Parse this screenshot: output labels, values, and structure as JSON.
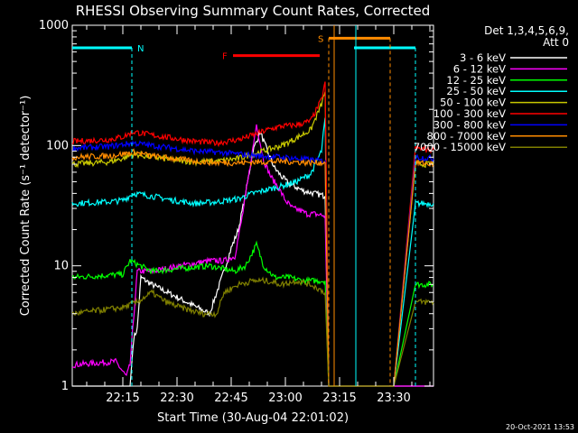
{
  "chart_data": {
    "type": "line",
    "title": "RHESSI Observing Summary Count Rates, Corrected",
    "xlabel": "Start Time (30-Aug-04 22:01:02)",
    "ylabel": "Corrected Count Rate (s⁻¹ detector⁻¹)",
    "y_scale": "log",
    "ylim": [
      1,
      1000
    ],
    "xlim_minutes": [
      0,
      100
    ],
    "y_ticks": [
      {
        "value": 1,
        "label": "1"
      },
      {
        "value": 10,
        "label": "10"
      },
      {
        "value": 100,
        "label": "100"
      },
      {
        "value": 1000,
        "label": "1000"
      }
    ],
    "x_ticks": [
      {
        "minute": 14,
        "label": "22:15"
      },
      {
        "minute": 29,
        "label": "22:30"
      },
      {
        "minute": 44,
        "label": "22:45"
      },
      {
        "minute": 59,
        "label": "23:00"
      },
      {
        "minute": 74,
        "label": "23:15"
      },
      {
        "minute": 89,
        "label": "23:30"
      }
    ],
    "legend_header": [
      "Det 1,3,4,5,6,9,",
      "Att 0"
    ],
    "legend_position": "right",
    "timestamp": "20-Oct-2021 13:53",
    "series": [
      {
        "name": "3 - 6 keV",
        "color": "#ffffff",
        "points": [
          [
            0,
            1
          ],
          [
            16,
            1
          ],
          [
            17,
            2.5
          ],
          [
            18,
            3
          ],
          [
            19,
            8
          ],
          [
            22,
            7
          ],
          [
            38,
            4
          ],
          [
            40,
            6
          ],
          [
            42,
            9
          ],
          [
            44,
            14
          ],
          [
            46,
            20
          ],
          [
            48,
            40
          ],
          [
            50,
            90
          ],
          [
            52,
            130
          ],
          [
            54,
            90
          ],
          [
            56,
            65
          ],
          [
            58,
            55
          ],
          [
            60,
            48
          ],
          [
            62,
            45
          ],
          [
            64,
            42
          ],
          [
            67,
            40
          ],
          [
            70,
            38
          ],
          [
            71,
            1
          ],
          [
            100,
            1
          ]
        ]
      },
      {
        "name": "6 - 12 keV",
        "color": "#ff00ff",
        "points": [
          [
            0,
            1.5
          ],
          [
            12,
            1.6
          ],
          [
            15,
            1.2
          ],
          [
            16,
            1.5
          ],
          [
            18,
            9
          ],
          [
            22,
            9
          ],
          [
            30,
            10
          ],
          [
            38,
            11
          ],
          [
            42,
            11
          ],
          [
            45,
            12
          ],
          [
            47,
            25
          ],
          [
            49,
            60
          ],
          [
            51,
            150
          ],
          [
            53,
            75
          ],
          [
            55,
            55
          ],
          [
            57,
            45
          ],
          [
            59,
            35
          ],
          [
            61,
            30
          ],
          [
            63,
            29
          ],
          [
            65,
            27
          ],
          [
            67,
            27
          ],
          [
            70,
            26
          ],
          [
            71,
            1
          ],
          [
            100,
            1
          ]
        ]
      },
      {
        "name": "12 - 25 keV",
        "color": "#00ff00",
        "points": [
          [
            0,
            8
          ],
          [
            14,
            8.5
          ],
          [
            16,
            11
          ],
          [
            22,
            9
          ],
          [
            30,
            9.5
          ],
          [
            38,
            10
          ],
          [
            45,
            9
          ],
          [
            48,
            10
          ],
          [
            51,
            15
          ],
          [
            53,
            10
          ],
          [
            56,
            8
          ],
          [
            60,
            8
          ],
          [
            64,
            7.5
          ],
          [
            67,
            7.5
          ],
          [
            70,
            7.5
          ],
          [
            71,
            1
          ],
          [
            89,
            1
          ],
          [
            95,
            7
          ],
          [
            100,
            7
          ]
        ]
      },
      {
        "name": "25 - 50 keV",
        "color": "#00ffff",
        "points": [
          [
            0,
            33
          ],
          [
            10,
            34
          ],
          [
            14,
            35
          ],
          [
            17,
            40
          ],
          [
            22,
            38
          ],
          [
            28,
            35
          ],
          [
            34,
            33
          ],
          [
            40,
            34
          ],
          [
            46,
            36
          ],
          [
            50,
            40
          ],
          [
            54,
            43
          ],
          [
            58,
            46
          ],
          [
            62,
            50
          ],
          [
            66,
            58
          ],
          [
            69,
            90
          ],
          [
            70,
            170
          ],
          [
            71,
            1
          ],
          [
            89,
            1
          ],
          [
            95,
            33
          ],
          [
            100,
            33
          ]
        ]
      },
      {
        "name": "50 - 100 keV",
        "color": "#c8c800",
        "points": [
          [
            0,
            70
          ],
          [
            10,
            73
          ],
          [
            14,
            78
          ],
          [
            17,
            85
          ],
          [
            22,
            80
          ],
          [
            28,
            76
          ],
          [
            34,
            73
          ],
          [
            40,
            74
          ],
          [
            46,
            78
          ],
          [
            50,
            85
          ],
          [
            54,
            92
          ],
          [
            58,
            100
          ],
          [
            62,
            115
          ],
          [
            66,
            135
          ],
          [
            69,
            220
          ],
          [
            70,
            280
          ],
          [
            71,
            1
          ],
          [
            89,
            1
          ],
          [
            95,
            70
          ],
          [
            100,
            70
          ]
        ]
      },
      {
        "name": "100 - 300 keV",
        "color": "#ff0000",
        "points": [
          [
            0,
            108
          ],
          [
            10,
            112
          ],
          [
            14,
            118
          ],
          [
            17,
            130
          ],
          [
            22,
            122
          ],
          [
            28,
            115
          ],
          [
            34,
            108
          ],
          [
            40,
            105
          ],
          [
            46,
            112
          ],
          [
            50,
            122
          ],
          [
            54,
            135
          ],
          [
            58,
            145
          ],
          [
            62,
            148
          ],
          [
            66,
            160
          ],
          [
            69,
            240
          ],
          [
            70,
            340
          ],
          [
            71,
            1
          ],
          [
            89,
            1
          ],
          [
            95,
            95
          ],
          [
            100,
            92
          ]
        ]
      },
      {
        "name": "300 - 800 keV",
        "color": "#0000ff",
        "points": [
          [
            0,
            95
          ],
          [
            10,
            98
          ],
          [
            14,
            102
          ],
          [
            17,
            105
          ],
          [
            22,
            100
          ],
          [
            28,
            95
          ],
          [
            34,
            90
          ],
          [
            40,
            88
          ],
          [
            46,
            85
          ],
          [
            52,
            82
          ],
          [
            58,
            80
          ],
          [
            62,
            78
          ],
          [
            66,
            76
          ],
          [
            70,
            74
          ],
          [
            71,
            1
          ],
          [
            89,
            1
          ],
          [
            95,
            80
          ],
          [
            100,
            78
          ]
        ]
      },
      {
        "name": "800 - 7000 keV",
        "color": "#ff8c00",
        "points": [
          [
            0,
            80
          ],
          [
            10,
            82
          ],
          [
            14,
            85
          ],
          [
            17,
            88
          ],
          [
            22,
            82
          ],
          [
            28,
            78
          ],
          [
            34,
            74
          ],
          [
            40,
            72
          ],
          [
            46,
            72
          ],
          [
            52,
            73
          ],
          [
            58,
            74
          ],
          [
            62,
            73
          ],
          [
            66,
            72
          ],
          [
            70,
            72
          ],
          [
            71,
            1
          ],
          [
            89,
            1
          ],
          [
            95,
            72
          ],
          [
            100,
            70
          ]
        ]
      },
      {
        "name": "7000 - 15000 keV",
        "color": "#808000",
        "points": [
          [
            0,
            4
          ],
          [
            14,
            4.5
          ],
          [
            18,
            5
          ],
          [
            22,
            6
          ],
          [
            26,
            5
          ],
          [
            30,
            4.5
          ],
          [
            36,
            4
          ],
          [
            40,
            4
          ],
          [
            42,
            6
          ],
          [
            46,
            7
          ],
          [
            50,
            7.5
          ],
          [
            54,
            7.5
          ],
          [
            58,
            7
          ],
          [
            62,
            7.5
          ],
          [
            66,
            7
          ],
          [
            70,
            6
          ],
          [
            71,
            1
          ],
          [
            89,
            1
          ],
          [
            95,
            5
          ],
          [
            100,
            5
          ]
        ]
      }
    ],
    "flags": [
      {
        "label": "N",
        "color": "#00ffff",
        "segments": [
          [
            0,
            16.5
          ],
          [
            78,
            95
          ]
        ],
        "level": 650,
        "vlines": [
          16.5,
          95
        ]
      },
      {
        "label": "F",
        "color": "#ff0000",
        "segments": [
          [
            44.5,
            68.5
          ]
        ],
        "level": 560
      },
      {
        "label": "S",
        "color": "#ff8c00",
        "segments": [
          [
            71,
            88
          ]
        ],
        "level": 780,
        "vlines": [
          71,
          88
        ]
      }
    ],
    "attenuator_vlines": [
      {
        "minute": 78.5,
        "color": "#00ffff"
      },
      {
        "minute": 72.5,
        "color": "#ff8c00"
      }
    ]
  }
}
